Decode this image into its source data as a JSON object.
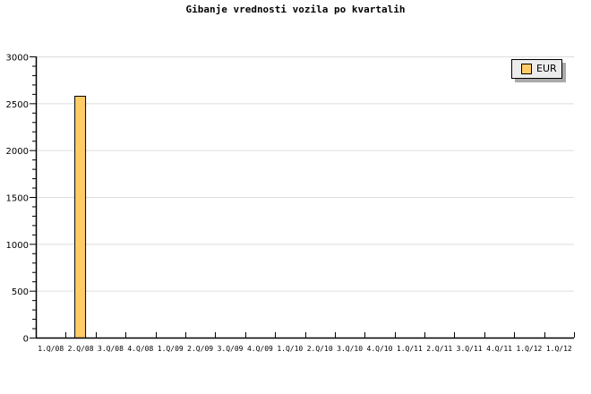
{
  "chart_data": {
    "type": "bar",
    "title": "Gibanje vrednosti vozila po kvartalih",
    "xlabel": "",
    "ylabel": "",
    "categories": [
      "1.Q/08",
      "2.Q/08",
      "3.Q/08",
      "4.Q/08",
      "1.Q/09",
      "2.Q/09",
      "3.Q/09",
      "4.Q/09",
      "1.Q/10",
      "2.Q/10",
      "3.Q/10",
      "4.Q/10",
      "1.Q/11",
      "2.Q/11",
      "3.Q/11",
      "4.Q/11",
      "1.Q/12",
      "1.Q/12"
    ],
    "series": [
      {
        "name": "EUR",
        "color": "#ffcc66",
        "values": [
          0,
          2580,
          0,
          0,
          0,
          0,
          0,
          0,
          0,
          0,
          0,
          0,
          0,
          0,
          0,
          0,
          0,
          0
        ]
      }
    ],
    "ylim": [
      0,
      3000
    ],
    "yticks": [
      0,
      500,
      1000,
      1500,
      2000,
      2500,
      3000
    ],
    "grid": true,
    "legend": "top-right"
  }
}
